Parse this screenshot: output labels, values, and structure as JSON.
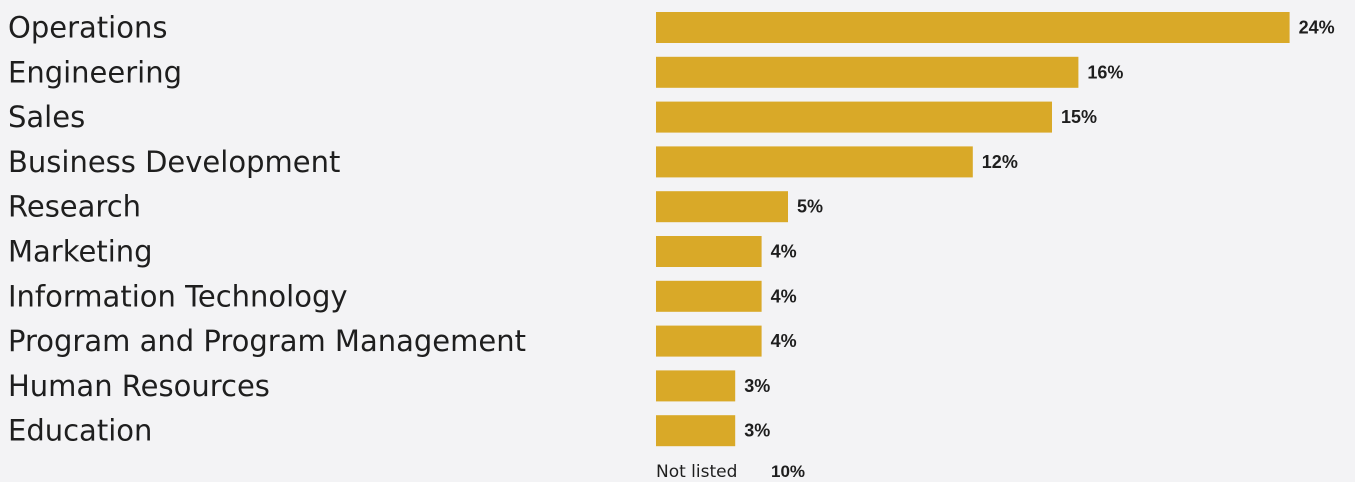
{
  "chart_data": {
    "type": "bar",
    "orientation": "horizontal",
    "categories": [
      "Operations",
      "Engineering",
      "Sales",
      "Business Development",
      "Research",
      "Marketing",
      "Information Technology",
      "Program and Program Management",
      "Human Resources",
      "Education"
    ],
    "values": [
      24,
      16,
      15,
      12,
      5,
      4,
      4,
      4,
      3,
      3
    ],
    "value_labels": [
      "24%",
      "16%",
      "15%",
      "12%",
      "5%",
      "4%",
      "4%",
      "4%",
      "3%",
      "3%"
    ],
    "unit": "%",
    "footnote": {
      "label": "Not listed",
      "value": 10,
      "value_label": "10%"
    },
    "grid": false,
    "legend": "none",
    "colors": {
      "bar": "#d9a928",
      "background": "#f3f3f5",
      "text": "#1e1e1e"
    }
  }
}
